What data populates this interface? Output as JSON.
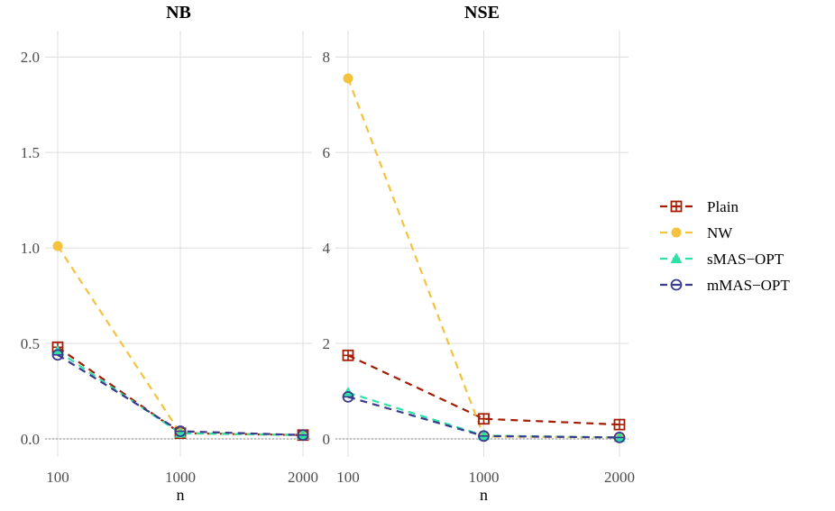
{
  "chart_data": [
    {
      "type": "line",
      "title": "NB",
      "xlabel": "n",
      "ylabel": "",
      "x": [
        "100",
        "1000",
        "2000"
      ],
      "ylim": [
        0,
        2.1
      ],
      "yticks": [
        "0.0",
        "0.5",
        "1.0",
        "1.5",
        "2.0"
      ],
      "ytick_values": [
        0,
        0.5,
        1.0,
        1.5,
        2.0
      ],
      "reference_line": 0,
      "grid": true,
      "series": [
        {
          "name": "Plain",
          "values": [
            0.48,
            0.03,
            0.02
          ]
        },
        {
          "name": "NW",
          "values": [
            1.01,
            0.03,
            0.02
          ]
        },
        {
          "name": "sMAS−OPT",
          "values": [
            0.46,
            0.03,
            0.02
          ]
        },
        {
          "name": "mMAS−OPT",
          "values": [
            0.44,
            0.04,
            0.02
          ]
        }
      ]
    },
    {
      "type": "line",
      "title": "NSE",
      "xlabel": "n",
      "ylabel": "",
      "x": [
        "100",
        "1000",
        "2000"
      ],
      "ylim": [
        0,
        8.4
      ],
      "yticks": [
        "0",
        "2",
        "4",
        "6",
        "8"
      ],
      "ytick_values": [
        0,
        2,
        4,
        6,
        8
      ],
      "reference_line": 0,
      "grid": true,
      "series": [
        {
          "name": "Plain",
          "values": [
            1.75,
            0.42,
            0.3
          ]
        },
        {
          "name": "NW",
          "values": [
            7.55,
            0.05,
            0.03
          ]
        },
        {
          "name": "sMAS−OPT",
          "values": [
            0.97,
            0.07,
            0.03
          ]
        },
        {
          "name": "mMAS−OPT",
          "values": [
            0.88,
            0.06,
            0.03
          ]
        }
      ]
    }
  ],
  "legend": {
    "position": "right",
    "items": [
      {
        "label": "Plain",
        "color": "#a31d05",
        "marker": "square-plus"
      },
      {
        "label": "NW",
        "color": "#f4c23c",
        "marker": "circle-filled"
      },
      {
        "label": "sMAS−OPT",
        "color": "#2fe0a8",
        "marker": "triangle-filled"
      },
      {
        "label": "mMAS−OPT",
        "color": "#3b3a8c",
        "marker": "circle-minus"
      }
    ]
  }
}
